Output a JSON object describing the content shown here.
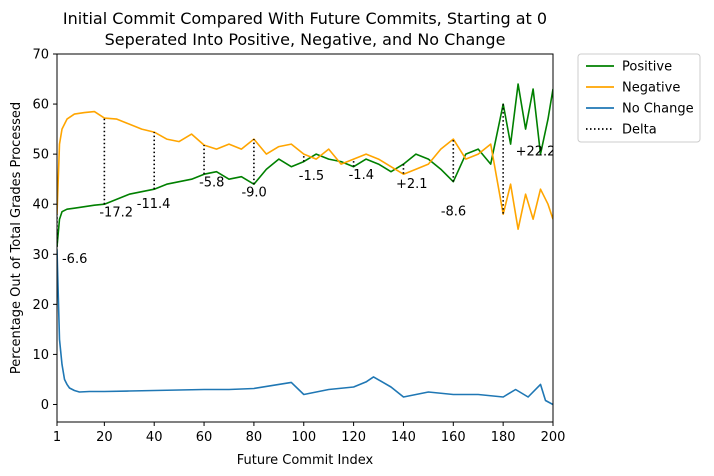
{
  "chart_data": {
    "type": "line",
    "title": "Initial Commit Compared With Future Commits, Starting at 0",
    "subtitle": "Seperated Into Positive, Negative, and No Change",
    "xlabel": "Future Commit Index",
    "ylabel": "Percentage Out of Total Grades Processed",
    "xlim": [
      1,
      200
    ],
    "ylim": [
      -3.5,
      70
    ],
    "x_ticks": [
      1,
      20,
      40,
      60,
      80,
      100,
      120,
      140,
      160,
      180,
      200
    ],
    "y_ticks": [
      0,
      10,
      20,
      30,
      40,
      50,
      60,
      70
    ],
    "grid": false,
    "legend_position": "outside-top-right",
    "series": [
      {
        "name": "Positive",
        "color": "#008000",
        "style": "solid",
        "x": [
          1,
          2,
          3,
          5,
          8,
          12,
          16,
          20,
          25,
          30,
          35,
          40,
          45,
          50,
          55,
          60,
          65,
          70,
          75,
          80,
          85,
          90,
          95,
          100,
          105,
          110,
          115,
          120,
          125,
          130,
          135,
          140,
          145,
          150,
          155,
          160,
          165,
          170,
          175,
          180,
          183,
          186,
          189,
          192,
          195,
          198,
          200
        ],
        "y": [
          31.5,
          37,
          38.5,
          39,
          39.2,
          39.5,
          39.8,
          40,
          41,
          42,
          42.5,
          43,
          44,
          44.5,
          45,
          46,
          46.5,
          45,
          45.5,
          44,
          47,
          49,
          47.5,
          48.5,
          50,
          49,
          48.5,
          47.5,
          49,
          48,
          46.5,
          48,
          50,
          49,
          47,
          44.5,
          50,
          51,
          48,
          60,
          52,
          64,
          55,
          63,
          50,
          57,
          63
        ]
      },
      {
        "name": "Negative",
        "color": "#FFA500",
        "style": "solid",
        "x": [
          1,
          2,
          3,
          5,
          8,
          12,
          16,
          20,
          25,
          30,
          35,
          40,
          45,
          50,
          55,
          60,
          65,
          70,
          75,
          80,
          85,
          90,
          95,
          100,
          105,
          110,
          115,
          120,
          125,
          130,
          135,
          140,
          145,
          150,
          155,
          160,
          165,
          170,
          175,
          180,
          183,
          186,
          189,
          192,
          195,
          198,
          200
        ],
        "y": [
          38,
          52,
          55,
          57,
          58,
          58.3,
          58.5,
          57.2,
          57,
          56,
          55,
          54.4,
          53,
          52.5,
          54,
          51.8,
          51,
          52,
          51,
          53,
          50,
          51.5,
          52,
          50,
          49,
          51,
          48,
          49,
          50,
          49,
          47.5,
          46,
          47,
          48,
          51,
          53,
          49,
          50,
          52,
          38,
          44,
          35,
          42,
          37,
          43,
          40,
          37
        ]
      },
      {
        "name": "No Change",
        "color": "#1F77B4",
        "style": "solid",
        "x": [
          1,
          2,
          3,
          4,
          5,
          6,
          8,
          10,
          14,
          20,
          30,
          40,
          50,
          60,
          70,
          80,
          90,
          95,
          100,
          110,
          120,
          125,
          128,
          135,
          140,
          150,
          160,
          170,
          180,
          185,
          190,
          195,
          197,
          200
        ],
        "y": [
          31,
          13,
          8,
          5,
          4,
          3.3,
          2.8,
          2.5,
          2.6,
          2.6,
          2.7,
          2.8,
          2.9,
          3,
          3,
          3.2,
          4,
          4.4,
          2,
          3,
          3.5,
          4.5,
          5.5,
          3.5,
          1.5,
          2.5,
          2,
          2,
          1.5,
          3,
          1.5,
          4,
          0.8,
          0
        ]
      }
    ],
    "delta_series": {
      "name": "Delta",
      "color": "#000000",
      "style": "dotted",
      "lines": [
        {
          "x": 1,
          "y_from": 31.5,
          "y_to": 38
        },
        {
          "x": 20,
          "y_from": 40,
          "y_to": 57.2
        },
        {
          "x": 40,
          "y_from": 43,
          "y_to": 54.4
        },
        {
          "x": 60,
          "y_from": 46,
          "y_to": 51.8
        },
        {
          "x": 80,
          "y_from": 44,
          "y_to": 53
        },
        {
          "x": 100,
          "y_from": 48.5,
          "y_to": 50
        },
        {
          "x": 120,
          "y_from": 47.5,
          "y_to": 48.9
        },
        {
          "x": 140,
          "y_from": 48,
          "y_to": 45.9
        },
        {
          "x": 160,
          "y_from": 44.5,
          "y_to": 53.1
        },
        {
          "x": 180,
          "y_from": 60,
          "y_to": 37.8
        }
      ]
    },
    "annotations": [
      {
        "text": "-6.6",
        "x": 3,
        "y": 28.3
      },
      {
        "text": "-17.2",
        "x": 18,
        "y": 37.5
      },
      {
        "text": "-11.4",
        "x": 33,
        "y": 39.2
      },
      {
        "text": "-5.8",
        "x": 58,
        "y": 43.5
      },
      {
        "text": "-9.0",
        "x": 75,
        "y": 41.5
      },
      {
        "text": "-1.5",
        "x": 98,
        "y": 44.8
      },
      {
        "text": "-1.4",
        "x": 118,
        "y": 45
      },
      {
        "text": "+2.1",
        "x": 137,
        "y": 43.2
      },
      {
        "text": "-8.6",
        "x": 155,
        "y": 37.7
      },
      {
        "text": "+22.2",
        "x": 185,
        "y": 49.7
      }
    ]
  }
}
